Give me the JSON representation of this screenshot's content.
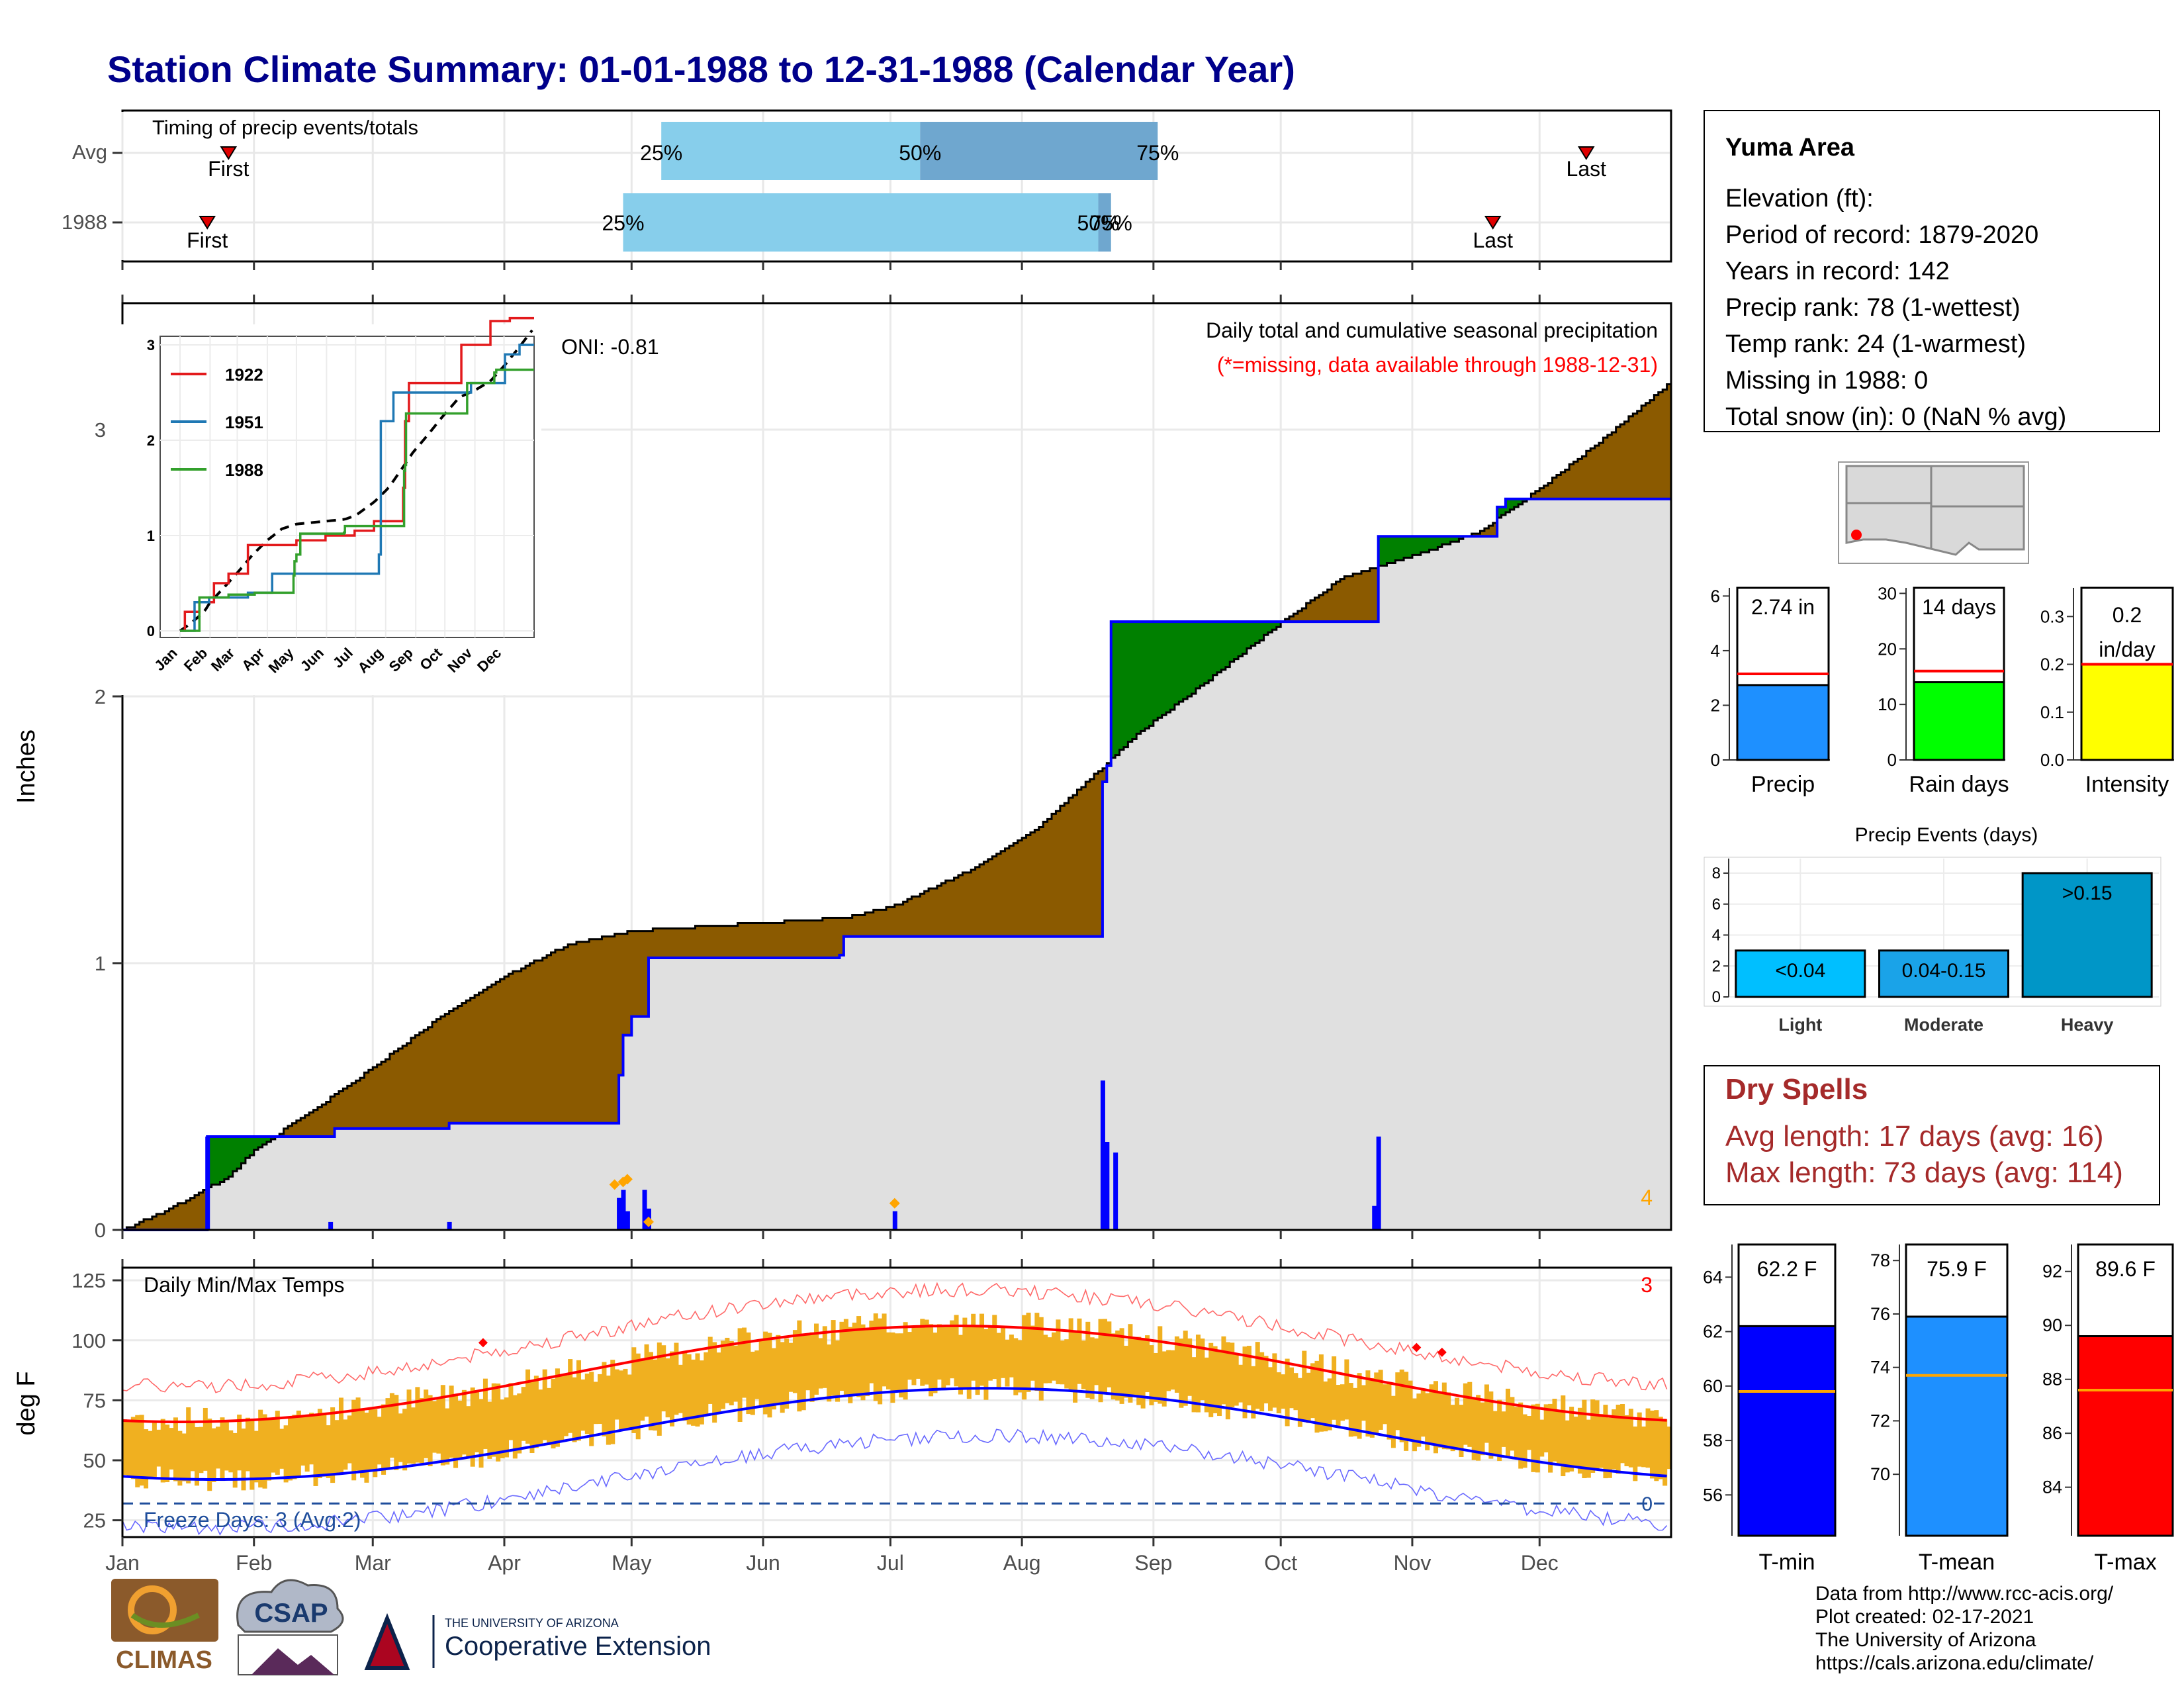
{
  "title": "Station Climate Summary: 01-01-1988 to 12-31-1988 (Calendar Year)",
  "timing": {
    "label": "Timing of precip events/totals",
    "rows": [
      {
        "name": "Avg",
        "first": "First",
        "last": "Last",
        "p25": "25%",
        "p50": "50%",
        "p75": "75%",
        "first_doy": 25,
        "p25_doy": 127,
        "p50_doy": 188,
        "p75_doy": 244,
        "last_doy": 345
      },
      {
        "name": "1988",
        "first": "First",
        "last": "Last",
        "p25": "25%",
        "p50": "50%",
        "p75": "75%",
        "first_doy": 20,
        "p25_doy": 118,
        "p50_doy": 230,
        "p75_doy": 233,
        "last_doy": 323
      }
    ]
  },
  "months": [
    "Jan",
    "Feb",
    "Mar",
    "Apr",
    "May",
    "Jun",
    "Jul",
    "Aug",
    "Sep",
    "Oct",
    "Nov",
    "Dec"
  ],
  "precip_panel": {
    "ylabel": "Inches",
    "yticks": [
      "0",
      "1",
      "2",
      "3"
    ],
    "header": "Daily total and cumulative seasonal precipitation",
    "missing_note": "(*=missing, data available through 1988-12-31)",
    "oni": "ONI: -0.81",
    "count_label": "4",
    "colors": {
      "above": "#008000",
      "below": "#8B5A00",
      "avg_fill": "#e0e0e0",
      "obs_line": "#0000ff",
      "bars": "#0000ff"
    }
  },
  "inset": {
    "yticks": [
      "0",
      "1",
      "2",
      "3"
    ],
    "months": [
      "Jan",
      "Feb",
      "Mar",
      "Apr",
      "May",
      "Jun",
      "Jul",
      "Aug",
      "Sep",
      "Oct",
      "Nov",
      "Dec"
    ],
    "legend": [
      {
        "name": "1922",
        "color": "#e31a1c"
      },
      {
        "name": "1951",
        "color": "#1f78b4"
      },
      {
        "name": "1988",
        "color": "#33a02c"
      }
    ]
  },
  "temp_panel": {
    "ylabel": "deg F",
    "yticks": [
      "25",
      "50",
      "75",
      "100",
      "125"
    ],
    "title": "Daily Min/Max Temps",
    "count_label": "3",
    "freeze_label": "Freeze Days: 3 (Avg:2)",
    "zero_label": "0"
  },
  "station": {
    "name": "Yuma Area",
    "lines": [
      "Elevation (ft):",
      "Period of record: 1879-2020",
      "Years in record: 142",
      "Precip rank: 78 (1-wettest)",
      "Temp rank: 24 (1-warmest)",
      "Missing in 1988: 0",
      "Total snow (in): 0 (NaN % avg)"
    ]
  },
  "mini_bars": [
    {
      "label": "Precip",
      "value_text": "2.74 in",
      "value": 2.74,
      "avg": 3.15,
      "ymax": 6.3,
      "ticks": [
        "0",
        "2",
        "4",
        "6"
      ],
      "tickvals": [
        0,
        2,
        4,
        6
      ],
      "color": "#1e90ff"
    },
    {
      "label": "Rain days",
      "value_text": "14 days",
      "value": 14,
      "avg": 16,
      "ymax": 31,
      "ticks": [
        "0",
        "10",
        "20",
        "30"
      ],
      "tickvals": [
        0,
        10,
        20,
        30
      ],
      "color": "#00ff00"
    },
    {
      "label": "Intensity",
      "value_text_1": "0.2",
      "value_text_2": "in/day",
      "value": 0.2,
      "avg": 0.2,
      "ymax": 0.36,
      "ticks": [
        "0.0",
        "0.1",
        "0.2",
        "0.3"
      ],
      "tickvals": [
        0,
        0.1,
        0.2,
        0.3
      ],
      "color": "#ffff00"
    }
  ],
  "events": {
    "title": "Precip Events (days)",
    "yticks": [
      "0",
      "2",
      "4",
      "6",
      "8"
    ],
    "categories": [
      "Light",
      "Moderate",
      "Heavy"
    ],
    "bar_labels": [
      "<0.04",
      "0.04-0.15",
      ">0.15"
    ],
    "values": [
      3,
      3,
      8
    ],
    "colors": [
      "#00bfff",
      "#1aa3e8",
      "#0096c7"
    ]
  },
  "dry_spells": {
    "title": "Dry Spells",
    "avg_line": "Avg length: 17 days (avg: 16)",
    "max_line": "Max length: 73 days (avg: 114)",
    "color": "#a52a2a"
  },
  "temp_bars": [
    {
      "label": "T-min",
      "value_text": "62.2 F",
      "value": 62.2,
      "avg": 59.8,
      "ymin": 54.5,
      "ymax": 65.2,
      "ticks": [
        "56",
        "58",
        "60",
        "62",
        "64"
      ],
      "tickvals": [
        56,
        58,
        60,
        62,
        64
      ],
      "color": "#0000ff"
    },
    {
      "label": "T-mean",
      "value_text": "75.9 F",
      "value": 75.9,
      "avg": 73.7,
      "ymin": 67.7,
      "ymax": 78.6,
      "ticks": [
        "70",
        "72",
        "74",
        "76",
        "78"
      ],
      "tickvals": [
        70,
        72,
        74,
        76,
        78
      ],
      "color": "#1e90ff"
    },
    {
      "label": "T-max",
      "value_text": "89.6 F",
      "value": 89.6,
      "avg": 87.6,
      "ymin": 82.2,
      "ymax": 93.0,
      "ticks": [
        "84",
        "86",
        "88",
        "90",
        "92"
      ],
      "tickvals": [
        84,
        86,
        88,
        90,
        92
      ],
      "color": "#ff0000"
    }
  ],
  "credits": [
    "Data from http://www.rcc-acis.org/",
    "Plot created: 02-17-2021",
    "The University of Arizona",
    "https://cals.arizona.edu/climate/"
  ],
  "logos": {
    "climas": "CLIMAS",
    "csap": "CSAP",
    "ua_small": "THE UNIVERSITY OF ARIZONA",
    "ua_big": "Cooperative Extension"
  }
}
